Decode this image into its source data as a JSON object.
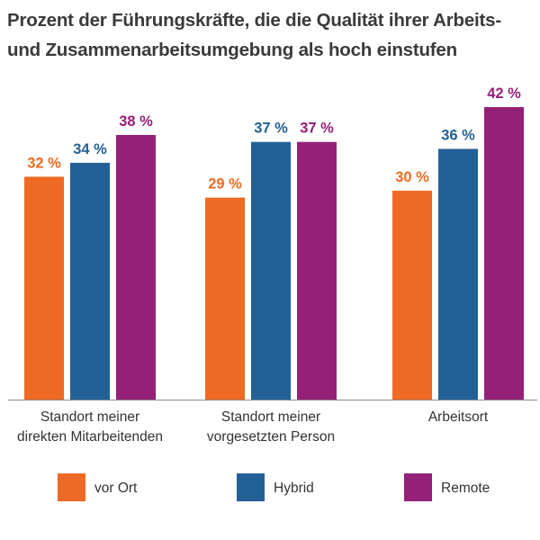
{
  "chart_data": {
    "type": "bar",
    "title_lines": [
      "Prozent der Führungskräfte, die die Qualität ihrer Arbeits-",
      "und Zusammenarbeitsumgebung als hoch einstufen"
    ],
    "categories": [
      [
        "Standort meiner",
        "direkten Mitarbeitenden"
      ],
      [
        "Standort meiner",
        "vorgesetzten Person"
      ],
      [
        "Arbeitsort"
      ]
    ],
    "series": [
      {
        "name": "vor Ort",
        "color": "#ee6a24",
        "values": [
          32,
          29,
          30
        ]
      },
      {
        "name": "Hybrid",
        "color": "#236097",
        "values": [
          34,
          37,
          36
        ]
      },
      {
        "name": "Remote",
        "color": "#932178",
        "values": [
          38,
          37,
          42
        ]
      }
    ],
    "value_suffix": " %",
    "ylim": [
      0,
      42
    ],
    "legend_position": "bottom",
    "grid": false
  }
}
